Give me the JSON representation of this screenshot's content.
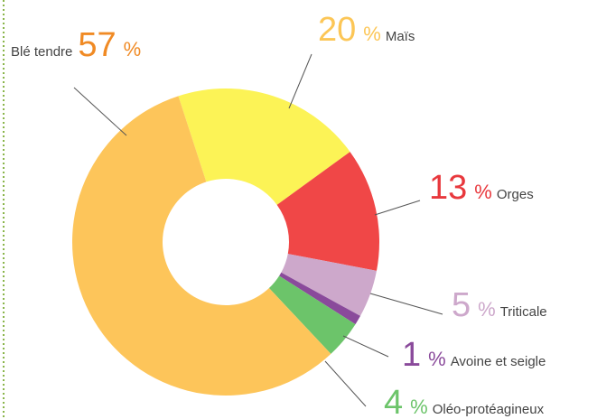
{
  "chart_data": {
    "type": "donut",
    "categories": [
      "Blé tendre",
      "Maïs",
      "Orges",
      "Triticale",
      "Avoine et seigle",
      "Oléo-protéagineux"
    ],
    "values": [
      57,
      20,
      13,
      5,
      1,
      4
    ],
    "unit": "%",
    "colors": [
      "#fdc55a",
      "#fcf356",
      "#f04747",
      "#cda8cb",
      "#8a4a9b",
      "#6cc46a"
    ],
    "label_colors": [
      "#f08a24",
      "#fcc656",
      "#e8383d",
      "#cda8cb",
      "#8a4a9b",
      "#6cc46a"
    ]
  }
}
